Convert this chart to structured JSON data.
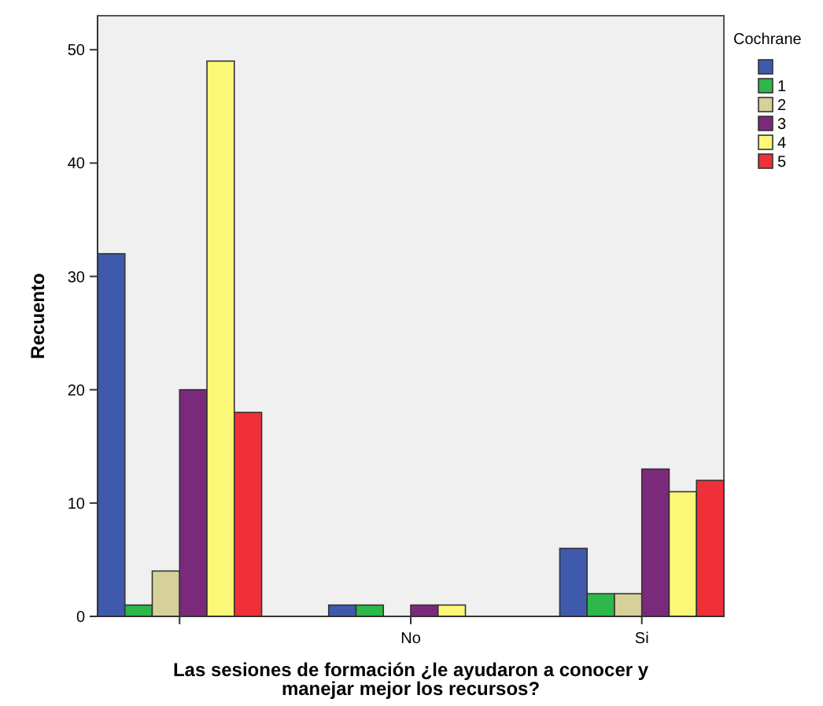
{
  "chart_data": {
    "type": "bar",
    "xlabel": "Las sesiones de formación ¿le ayudaron a conocer y manejar mejor los recursos?",
    "ylabel": "Recuento",
    "legend_title": "Cochrane",
    "categories": [
      null,
      "No",
      "Si"
    ],
    "series": [
      {
        "color": "#3f5aad",
        "values": [
          32,
          1,
          6
        ]
      },
      {
        "name": "1",
        "color": "#2db84a",
        "values": [
          1,
          1,
          2
        ]
      },
      {
        "name": "2",
        "color": "#d6d19a",
        "values": [
          4,
          null,
          2
        ]
      },
      {
        "name": "3",
        "color": "#7b2a7b",
        "values": [
          20,
          1,
          13
        ]
      },
      {
        "name": "4",
        "color": "#fbf877",
        "values": [
          49,
          1,
          11
        ]
      },
      {
        "name": "5",
        "color": "#f03039",
        "values": [
          18,
          null,
          12
        ]
      }
    ],
    "ylim": [
      0,
      53
    ],
    "yticks": [
      0,
      10,
      20,
      30,
      40,
      50
    ],
    "grid": false,
    "legend": "right"
  }
}
